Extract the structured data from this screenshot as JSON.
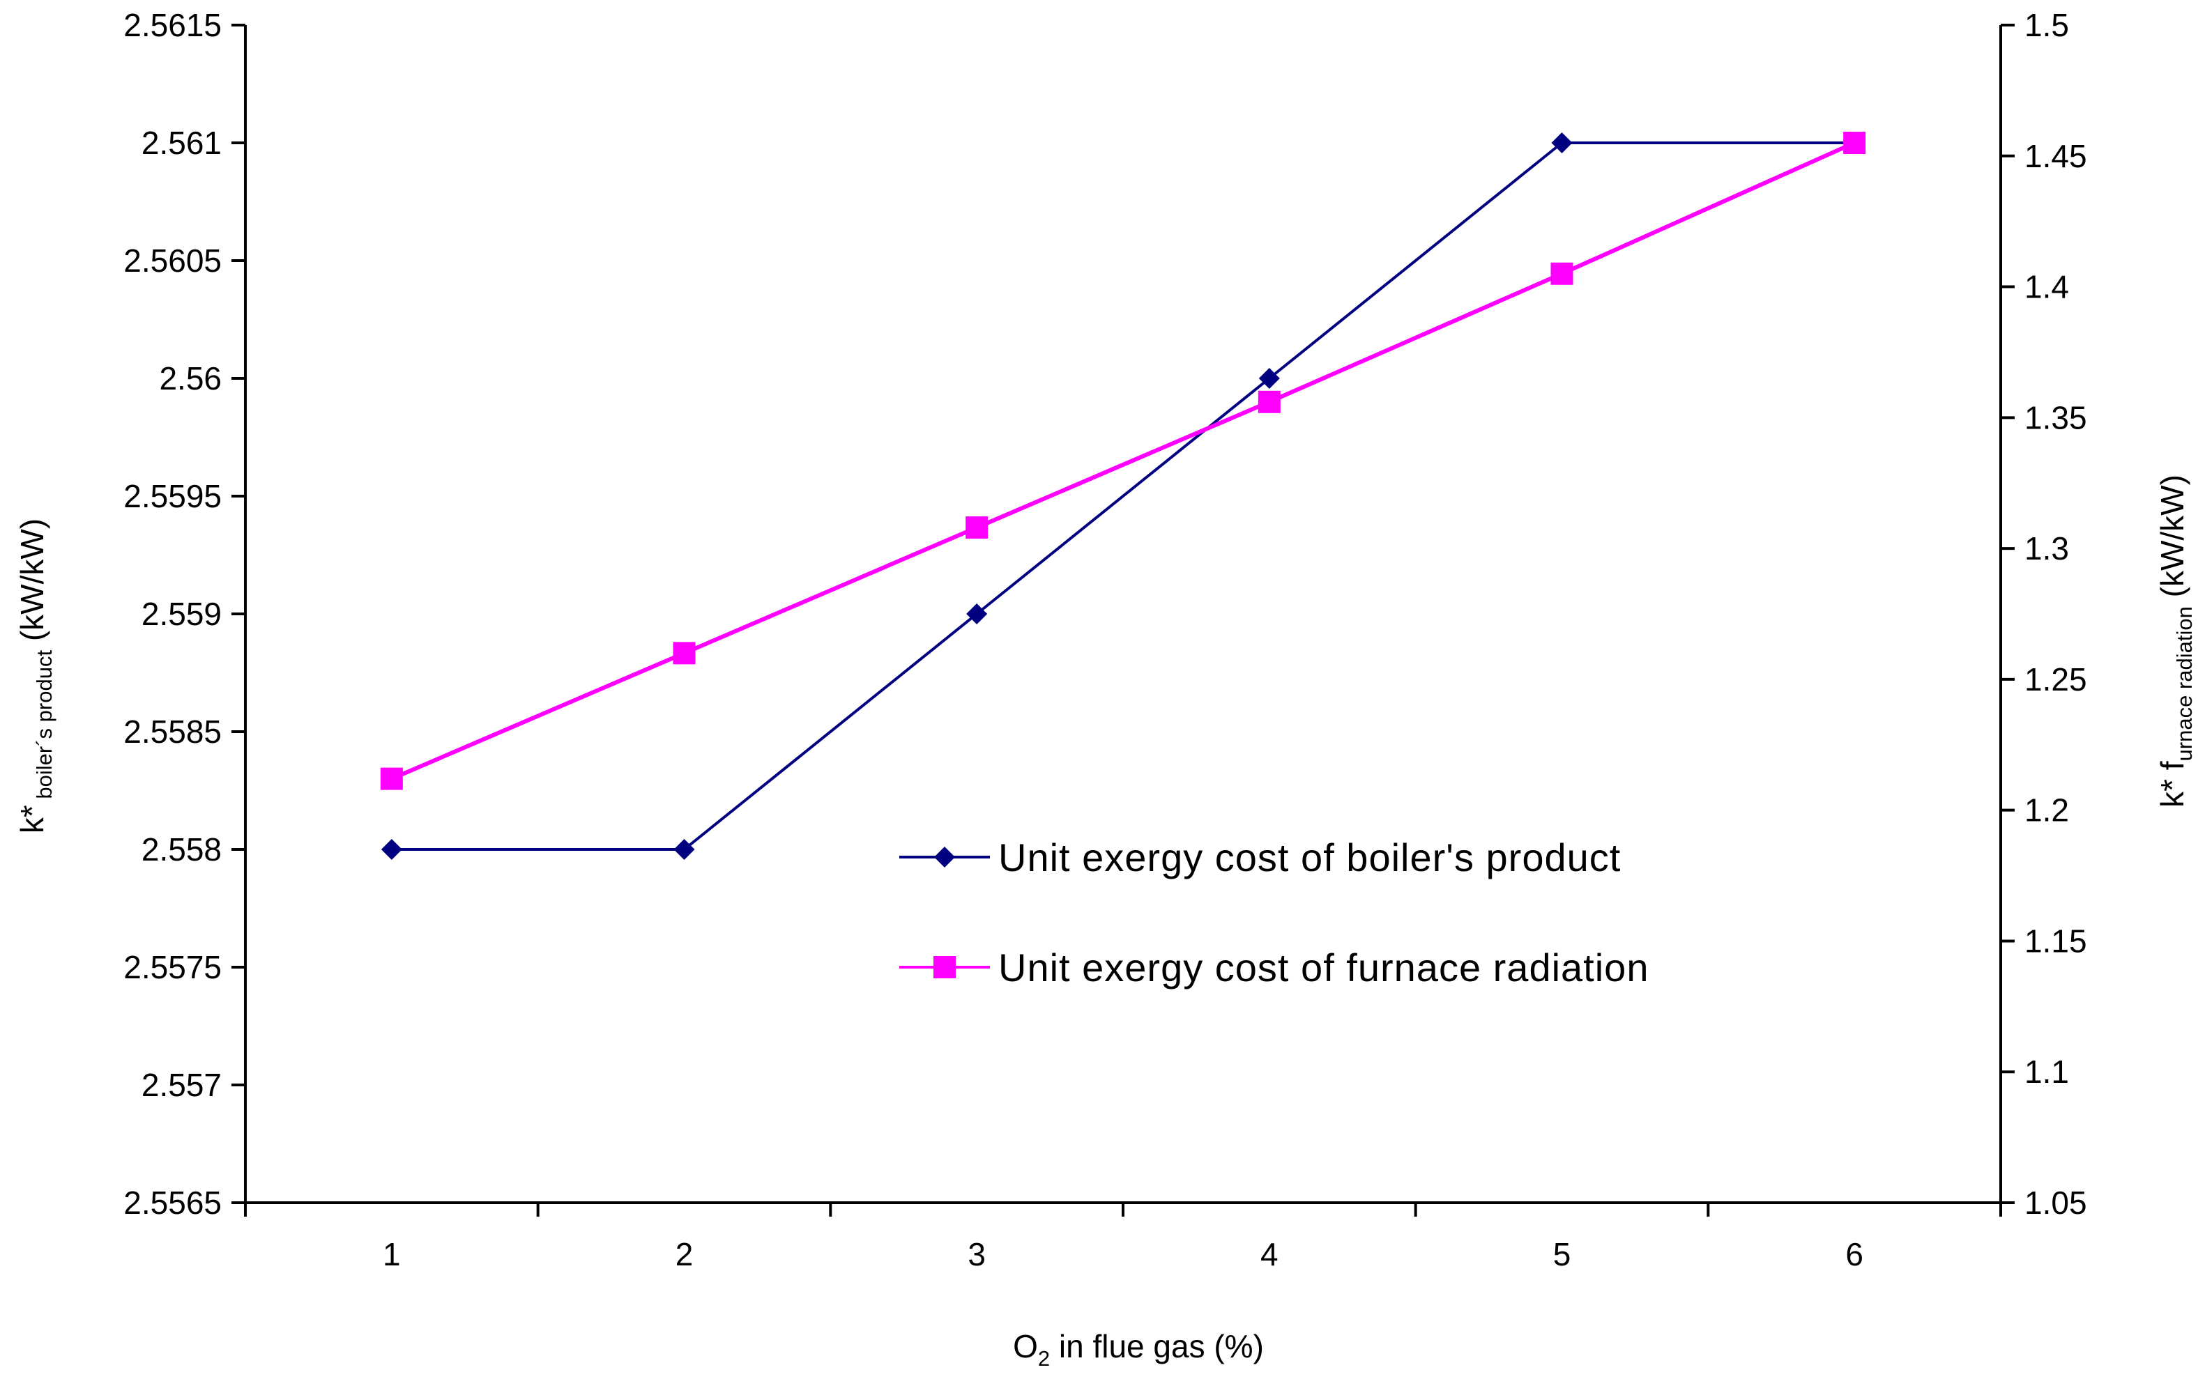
{
  "chart_data": {
    "type": "line",
    "x": [
      1,
      2,
      3,
      4,
      5,
      6
    ],
    "xlim": [
      0.5,
      6.5
    ],
    "x_tick_labels": [
      "1",
      "2",
      "3",
      "4",
      "5",
      "6"
    ],
    "xlabel": {
      "base": "O",
      "sub": "2",
      "rest": " in flue gas (%)"
    },
    "ylabel_left": {
      "pre": "k*",
      "sub": " boiler´s product",
      "post": " (kW/kW)"
    },
    "ylabel_right": {
      "pre": "k* f",
      "sub": "urnace radiation",
      "post": " (kW/kW)"
    },
    "ylim_left": [
      2.5565,
      2.5615
    ],
    "ylim_right": [
      1.05,
      1.5
    ],
    "y_left_tick_values": [
      2.5565,
      2.557,
      2.5575,
      2.558,
      2.5585,
      2.559,
      2.5595,
      2.56,
      2.5605,
      2.561,
      2.5615
    ],
    "y_left_tick_labels": [
      "2.5565",
      "2.557",
      "2.5575",
      "2.558",
      "2.5585",
      "2.559",
      "2.5595",
      "2.56",
      "2.5605",
      "2.561",
      "2.5615"
    ],
    "y_right_tick_values": [
      1.05,
      1.1,
      1.15,
      1.2,
      1.25,
      1.3,
      1.35,
      1.4,
      1.45,
      1.5
    ],
    "y_right_tick_labels": [
      "1.05",
      "1.1",
      "1.15",
      "1.2",
      "1.25",
      "1.3",
      "1.35",
      "1.4",
      "1.45",
      "1.5"
    ],
    "grid": false,
    "legend_position": "center-right",
    "series": [
      {
        "name": "Unit exergy cost of boiler's product",
        "axis": "left",
        "values": [
          2.558,
          2.558,
          2.559,
          2.56,
          2.561,
          2.561
        ],
        "color": "#000080",
        "marker": "diamond"
      },
      {
        "name": "Unit exergy cost of furnace radiation",
        "axis": "right",
        "values": [
          1.212,
          1.26,
          1.308,
          1.356,
          1.405,
          1.455
        ],
        "color": "#FF00FF",
        "marker": "square"
      }
    ]
  }
}
